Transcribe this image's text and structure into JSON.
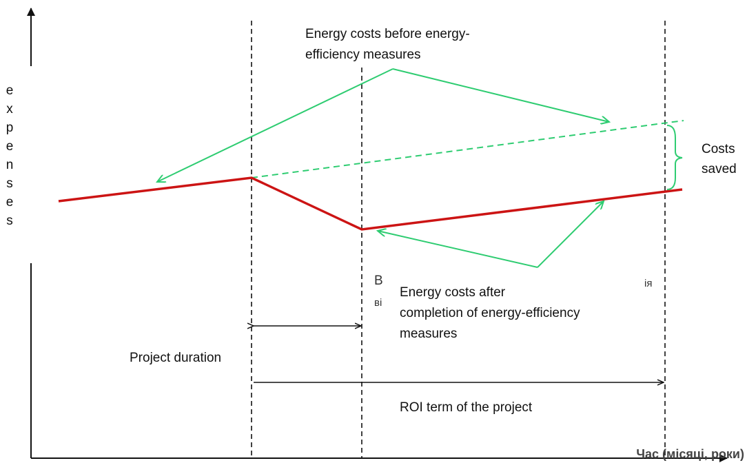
{
  "before_label": [
    "Energy costs before energy-",
    "efficiency measures"
  ],
  "after_label": [
    "Energy costs after",
    "completion of energy-efficiency",
    "measures"
  ],
  "y_axis_label": "expenses",
  "x_axis_label": "Час (місяці, роки)",
  "saved_label": [
    "Costs",
    "saved"
  ],
  "project_duration": "Project duration",
  "roi_term": "ROI term of the project",
  "fragments": [
    "В",
    "ві",
    "ія"
  ]
}
